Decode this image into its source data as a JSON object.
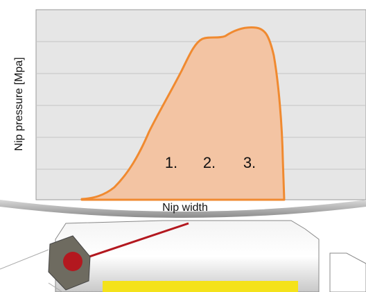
{
  "axis_labels": {
    "y": "Nip pressure [Mpa]",
    "x": "Nip width"
  },
  "zones": [
    "1.",
    "2.",
    "3."
  ]
}
